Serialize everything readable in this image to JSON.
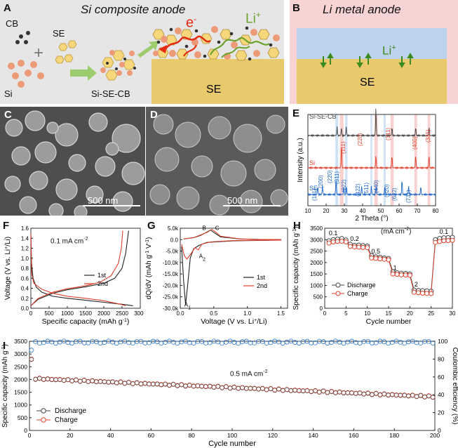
{
  "panels": {
    "A": {
      "letter": "A",
      "title": "Si composite anode",
      "labels": {
        "cb": "CB",
        "se": "SE",
        "si": "Si",
        "plus": "+",
        "mix": "Si-SE-CB",
        "electron": "e",
        "electron_sup": "-",
        "li": "Li",
        "li_sup": "+",
        "se_layer": "SE"
      }
    },
    "B": {
      "letter": "B",
      "title": "Li metal anode",
      "labels": {
        "li": "Li",
        "li_sup": "+",
        "se_layer": "SE"
      }
    },
    "C": {
      "letter": "C",
      "scale": "500 nm"
    },
    "D": {
      "letter": "D",
      "scale": "500 nm"
    },
    "E": {
      "letter": "E",
      "traces": [
        "Si-SE-CB",
        "Si",
        "SE"
      ]
    },
    "F": {
      "letter": "F",
      "annotation": "0.1 mA cm",
      "annotation_sup": "-2"
    },
    "G": {
      "letter": "G"
    },
    "H": {
      "letter": "H",
      "unit_note": "(mA cm",
      "unit_note_sup": "-2",
      "unit_note_end": ")"
    },
    "I": {
      "letter": "I",
      "annotation": "0.5 mA cm",
      "annotation_sup": "-2"
    }
  },
  "chart_data": [
    {
      "id": "E",
      "type": "line",
      "xlabel": "2 Theta (°)",
      "ylabel": "Intensity (a.u.)",
      "xlim": [
        10,
        80
      ],
      "xticks": [
        10,
        20,
        30,
        40,
        50,
        60,
        70,
        80
      ],
      "series": [
        {
          "name": "Si-SE-CB",
          "color": "#444444",
          "peaks": [
            26,
            28.4,
            31,
            47.3,
            56.1,
            69.1,
            76.4
          ]
        },
        {
          "name": "Si",
          "color": "#e0402c",
          "peaks": [
            28.4,
            47.3,
            56.1,
            69.1,
            76.4
          ]
        },
        {
          "name": "SE",
          "color": "#1f66c9",
          "peaks": [
            15.4,
            18,
            25.4,
            29.7,
            31.1,
            39.5,
            44.8,
            47.4,
            52.2,
            61.6,
            65.2,
            71.9
          ]
        }
      ],
      "si_planes": [
        "(111)",
        "(220)",
        "(311)",
        "(400)",
        "(331)"
      ],
      "se_planes": [
        "(111)",
        "(200)",
        "(220)",
        "(311)",
        "(222)",
        "(422)",
        "(511)",
        "(440)",
        "(620)",
        "(622)",
        "(731)"
      ]
    },
    {
      "id": "F",
      "type": "line",
      "xlabel": "Specific capacity (mAh g",
      "xlabel_sup": "-1",
      "xlabel_end": ")",
      "ylabel": "Voltage (V vs. Li",
      "ylabel_sup": "+",
      "ylabel_end": "/Li)",
      "xlim": [
        0,
        3000
      ],
      "ylim": [
        0,
        1.6
      ],
      "xticks": [
        0,
        500,
        1000,
        1500,
        2000,
        2500,
        3000
      ],
      "yticks": [
        0.0,
        0.2,
        0.4,
        0.6,
        0.8,
        1.0,
        1.2,
        1.4,
        1.6
      ],
      "legend": [
        "1st",
        "2nd"
      ],
      "series": [
        {
          "name": "1st discharge",
          "color": "#222222",
          "points": [
            [
              0,
              1.5
            ],
            [
              20,
              0.9
            ],
            [
              60,
              0.6
            ],
            [
              150,
              0.42
            ],
            [
              300,
              0.32
            ],
            [
              600,
              0.24
            ],
            [
              1000,
              0.2
            ],
            [
              1500,
              0.16
            ],
            [
              2000,
              0.12
            ],
            [
              2500,
              0.08
            ],
            [
              2800,
              0.05
            ]
          ]
        },
        {
          "name": "1st charge",
          "color": "#222222",
          "points": [
            [
              0,
              0.05
            ],
            [
              200,
              0.18
            ],
            [
              600,
              0.3
            ],
            [
              1000,
              0.37
            ],
            [
              1500,
              0.43
            ],
            [
              2000,
              0.5
            ],
            [
              2300,
              0.6
            ],
            [
              2500,
              0.8
            ],
            [
              2600,
              1.1
            ],
            [
              2680,
              1.55
            ]
          ]
        },
        {
          "name": "2nd discharge",
          "color": "#e0402c",
          "points": [
            [
              0,
              1.5
            ],
            [
              20,
              0.7
            ],
            [
              80,
              0.5
            ],
            [
              300,
              0.38
            ],
            [
              600,
              0.3
            ],
            [
              1000,
              0.24
            ],
            [
              1500,
              0.2
            ],
            [
              2000,
              0.15
            ],
            [
              2400,
              0.09
            ],
            [
              2600,
              0.05
            ]
          ]
        },
        {
          "name": "2nd charge",
          "color": "#e0402c",
          "points": [
            [
              0,
              0.05
            ],
            [
              200,
              0.2
            ],
            [
              600,
              0.32
            ],
            [
              1000,
              0.39
            ],
            [
              1500,
              0.45
            ],
            [
              1900,
              0.52
            ],
            [
              2200,
              0.65
            ],
            [
              2400,
              0.9
            ],
            [
              2480,
              1.2
            ],
            [
              2520,
              1.55
            ]
          ]
        }
      ]
    },
    {
      "id": "G",
      "type": "line",
      "xlabel": "Voltage (V vs. Li",
      "xlabel_sup": "+",
      "xlabel_end": "/Li)",
      "ylabel": "dQ/dV (mAh g",
      "ylabel_sup": "-1",
      "ylabel_mid": " V",
      "ylabel_sup2": "-1",
      "ylabel_end": ")",
      "xlim": [
        0,
        1.6
      ],
      "ylim": [
        -30000,
        5000
      ],
      "xticks": [
        0.0,
        0.5,
        1.0,
        1.5
      ],
      "yticks": [
        5000,
        0,
        -5000,
        -10000,
        -15000,
        -20000,
        -25000,
        -30000
      ],
      "ytick_labels": [
        "5.0k",
        "0.0",
        "-5.0k",
        "-10.0k",
        "-15.0k",
        "-20.0k",
        "-25.0k",
        "-30.0k"
      ],
      "legend": [
        "1st",
        "2nd"
      ],
      "peak_labels": {
        "A1": "A",
        "A1_sub": "1",
        "A2": "A",
        "A2_sub": "2",
        "B": "B",
        "C": "C"
      },
      "series": [
        {
          "name": "1st",
          "color": "#222222",
          "points": [
            [
              0.02,
              -3000
            ],
            [
              0.05,
              -18000
            ],
            [
              0.08,
              -28500
            ],
            [
              0.11,
              -20000
            ],
            [
              0.15,
              -8000
            ],
            [
              0.2,
              -4000
            ],
            [
              0.28,
              -2500
            ],
            [
              0.4,
              -1200
            ],
            [
              0.8,
              -500
            ],
            [
              1.5,
              -200
            ],
            [
              1.5,
              0
            ],
            [
              1.2,
              100
            ],
            [
              0.9,
              300
            ],
            [
              0.6,
              1200
            ],
            [
              0.5,
              3200
            ],
            [
              0.45,
              4200
            ],
            [
              0.38,
              3000
            ],
            [
              0.3,
              1800
            ],
            [
              0.2,
              900
            ],
            [
              0.05,
              300
            ]
          ]
        },
        {
          "name": "2nd",
          "color": "#e0402c",
          "points": [
            [
              0.02,
              -2000
            ],
            [
              0.06,
              -7000
            ],
            [
              0.1,
              -8500
            ],
            [
              0.15,
              -6500
            ],
            [
              0.22,
              -3500
            ],
            [
              0.27,
              -4500
            ],
            [
              0.32,
              -2000
            ],
            [
              0.45,
              -1000
            ],
            [
              0.8,
              -400
            ],
            [
              1.5,
              -200
            ],
            [
              1.5,
              0
            ],
            [
              1.2,
              100
            ],
            [
              0.9,
              300
            ],
            [
              0.6,
              1500
            ],
            [
              0.52,
              3500
            ],
            [
              0.47,
              4500
            ],
            [
              0.4,
              3200
            ],
            [
              0.3,
              2000
            ],
            [
              0.2,
              900
            ],
            [
              0.05,
              300
            ]
          ]
        }
      ]
    },
    {
      "id": "H",
      "type": "scatter",
      "xlabel": "Cycle number",
      "ylabel": "Specific capacity (mAh g",
      "ylabel_sup": "-1",
      "ylabel_end": ")",
      "xlim": [
        0,
        30
      ],
      "ylim": [
        0,
        3500
      ],
      "xticks": [
        0,
        5,
        10,
        15,
        20,
        25,
        30
      ],
      "yticks": [
        0,
        500,
        1000,
        1500,
        2000,
        2500,
        3000,
        3500
      ],
      "legend": [
        "Discharge",
        "Charge"
      ],
      "rate_labels": [
        "0.1",
        "0.2",
        "0.5",
        "1",
        "2",
        "0.1"
      ],
      "series": [
        {
          "name": "Discharge",
          "color": "#444444",
          "values": [
            2950,
            3000,
            3020,
            3050,
            2980,
            2800,
            2750,
            2760,
            2740,
            2720,
            2300,
            2250,
            2230,
            2200,
            2180,
            1600,
            1550,
            1530,
            1520,
            1500,
            800,
            780,
            770,
            760,
            750,
            3000,
            3050,
            3080,
            3090,
            3100
          ]
        },
        {
          "name": "Charge",
          "color": "#e0402c",
          "values": [
            2850,
            2900,
            2920,
            2930,
            2900,
            2700,
            2680,
            2670,
            2660,
            2650,
            2200,
            2180,
            2160,
            2140,
            2120,
            1500,
            1480,
            1460,
            1450,
            1440,
            700,
            680,
            660,
            650,
            640,
            2880,
            2920,
            2950,
            2960,
            2970
          ]
        }
      ]
    },
    {
      "id": "I",
      "type": "scatter",
      "xlabel": "Cycle number",
      "ylabel": "Specific capacity (mAh g",
      "ylabel_sup": "-1",
      "ylabel_end": ")",
      "y2label": "Coulombic efficiency (%)",
      "xlim": [
        0,
        200
      ],
      "ylim": [
        0,
        3500
      ],
      "y2lim": [
        0,
        100
      ],
      "xticks": [
        0,
        20,
        40,
        60,
        80,
        100,
        120,
        140,
        160,
        180,
        200
      ],
      "yticks": [
        0,
        500,
        1000,
        1500,
        2000,
        2500,
        3000,
        3500
      ],
      "y2ticks": [
        0,
        20,
        40,
        60,
        80,
        100
      ],
      "legend": [
        "Discharge",
        "Charge"
      ],
      "capacity": {
        "start": 2050,
        "end": 1330,
        "first": 2800
      },
      "efficiency": {
        "start": 90,
        "plateau": 99
      }
    }
  ]
}
